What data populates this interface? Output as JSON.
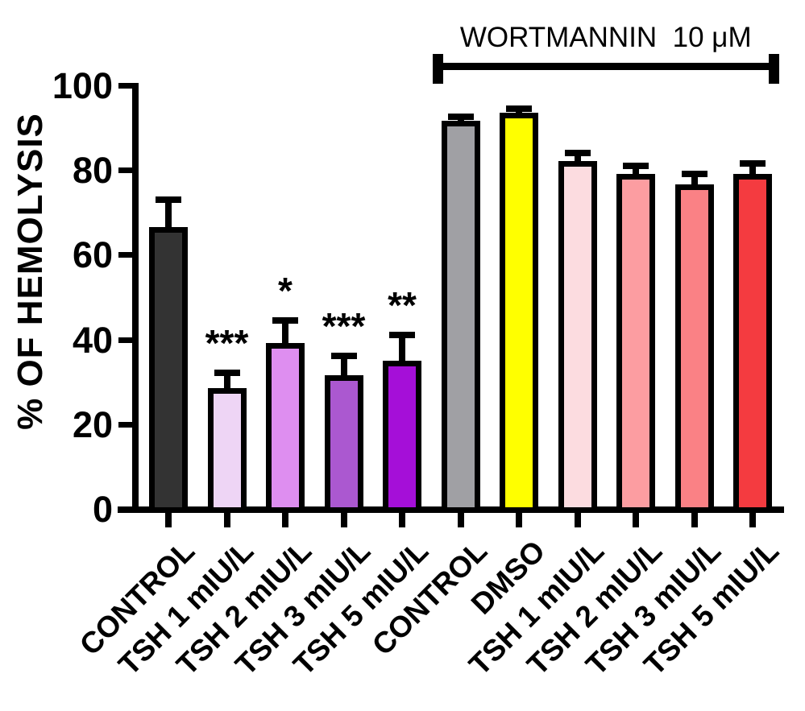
{
  "chart_data": {
    "type": "bar",
    "title": "",
    "ylabel": "% OF HEMOLYSIS",
    "xlabel": "",
    "ylim": [
      0,
      100
    ],
    "yticks": [
      0,
      20,
      40,
      60,
      80,
      100
    ],
    "grid": false,
    "legend": false,
    "categories": [
      "CONTROL",
      "TSH 1 mIU/L",
      "TSH 2 mIU/L",
      "TSH 3 mIU/L",
      "TSH 5 mIU/L",
      "CONTROL",
      "DMSO",
      "TSH 1 mIU/L",
      "TSH 2 mIU/L",
      "TSH 3 mIU/L",
      "TSH 5 mIU/L"
    ],
    "values": [
      66,
      28,
      38.5,
      31,
      34.5,
      91,
      93,
      81.5,
      78.5,
      76,
      78.5
    ],
    "errors": [
      8,
      5,
      7,
      6,
      7.5,
      2.5,
      2.5,
      3.5,
      3.5,
      4,
      4
    ],
    "significance": [
      "",
      "***",
      "*",
      "***",
      "**",
      "",
      "",
      "",
      "",
      "",
      ""
    ],
    "bar_colors": [
      "#333333",
      "#eed5f5",
      "#de8ef0",
      "#ab58d0",
      "#a50fd8",
      "#a0a0a4",
      "#ffff00",
      "#fcdce0",
      "#fc9da1",
      "#fa8185",
      "#f43b40"
    ],
    "bar_border_color": "#000000",
    "error_bar_color": "#000000",
    "text_color": "#000000",
    "background_color": "#ffffff",
    "bracket": {
      "label": "WORTMANNIN  10 μM",
      "from_category_index": 5,
      "to_category_index": 10
    }
  }
}
